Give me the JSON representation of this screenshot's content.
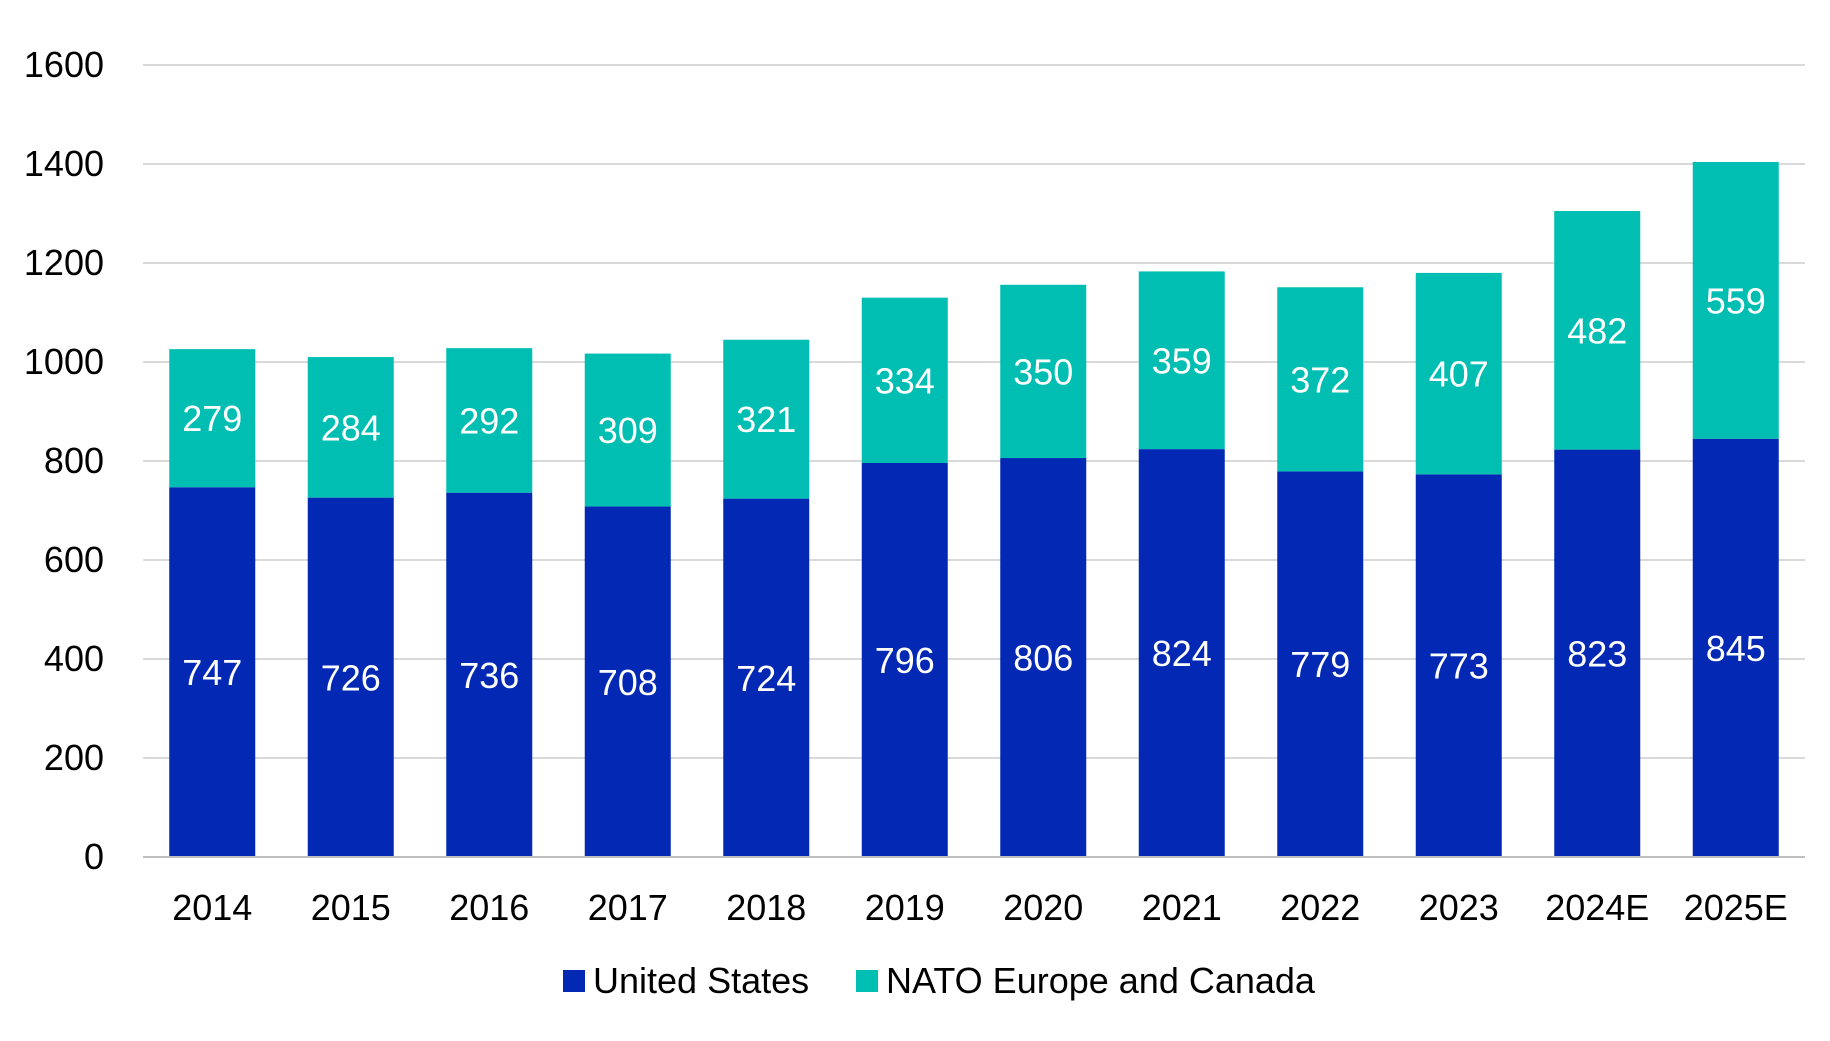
{
  "chart_data": {
    "type": "bar",
    "stacked": true,
    "title": "",
    "xlabel": "",
    "ylabel": "",
    "ylim": [
      0,
      1600
    ],
    "yticks": [
      0,
      200,
      400,
      600,
      800,
      1000,
      1200,
      1400,
      1600
    ],
    "grid": true,
    "legend_position": "bottom",
    "categories": [
      "2014",
      "2015",
      "2016",
      "2017",
      "2018",
      "2019",
      "2020",
      "2021",
      "2022",
      "2023",
      "2024E",
      "2025E"
    ],
    "series": [
      {
        "name": "United States",
        "color": "#0328b4",
        "values": [
          747,
          726,
          736,
          708,
          724,
          796,
          806,
          824,
          779,
          773,
          823,
          845
        ]
      },
      {
        "name": "NATO Europe and Canada",
        "color": "#00bfb2",
        "values": [
          279,
          284,
          292,
          309,
          321,
          334,
          350,
          359,
          372,
          407,
          482,
          559
        ]
      }
    ]
  }
}
